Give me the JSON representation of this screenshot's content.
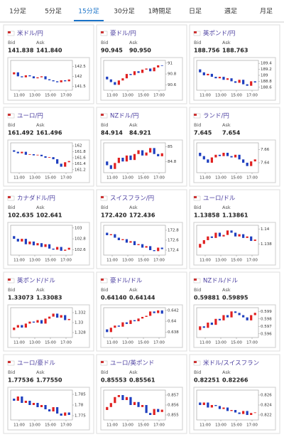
{
  "tabs": [
    "1分足",
    "5分足",
    "15分足",
    "30分足",
    "1時間足",
    "日足",
    "週足",
    "月足"
  ],
  "active_tab": 2,
  "bid_label": "Bid",
  "ask_label": "Ask",
  "xticks": [
    "11:00",
    "13:00",
    "15:00",
    "17:00"
  ],
  "panels": [
    {
      "title": "米ドル/円",
      "bid": "141.838",
      "ask": "141.840",
      "ylim": [
        141.3,
        142.8
      ],
      "yticks": [
        142.5,
        142,
        141.5
      ],
      "closes": [
        142.1,
        142.2,
        142.0,
        141.95,
        142.05,
        142.0,
        141.9,
        141.95,
        142.0,
        141.85,
        141.8,
        141.75,
        141.7,
        141.8,
        141.75,
        141.84
      ]
    },
    {
      "title": "豪ドル/円",
      "bid": "90.945",
      "ask": "90.950",
      "ylim": [
        90.5,
        91.05
      ],
      "yticks": [
        91,
        90.8,
        90.6
      ],
      "closes": [
        90.75,
        90.7,
        90.65,
        90.6,
        90.68,
        90.72,
        90.8,
        90.78,
        90.85,
        90.82,
        90.88,
        90.9,
        90.85,
        90.92,
        90.96,
        90.95
      ]
    },
    {
      "title": "英ポンド/円",
      "bid": "188.756",
      "ask": "188.763",
      "ylim": [
        188.5,
        189.5
      ],
      "yticks": [
        189.4,
        189.2,
        189,
        188.8,
        188.6
      ],
      "closes": [
        189.2,
        189.1,
        189.0,
        189.05,
        188.95,
        188.9,
        188.95,
        188.85,
        188.9,
        188.8,
        188.75,
        188.85,
        188.7,
        188.65,
        188.8,
        188.76
      ]
    },
    {
      "title": "ユーロ/円",
      "bid": "161.492",
      "ask": "161.496",
      "ylim": [
        161.1,
        162.1
      ],
      "yticks": [
        162,
        161.8,
        161.6,
        161.4,
        161.2
      ],
      "closes": [
        161.85,
        161.8,
        161.75,
        161.8,
        161.7,
        161.72,
        161.68,
        161.7,
        161.65,
        161.6,
        161.62,
        161.55,
        161.4,
        161.3,
        161.45,
        161.49
      ]
    },
    {
      "title": "NZドル/円",
      "bid": "84.914",
      "ask": "84.921",
      "ylim": [
        84.65,
        85.05
      ],
      "yticks": [
        85,
        84.8
      ],
      "closes": [
        84.8,
        84.75,
        84.7,
        84.78,
        84.85,
        84.8,
        84.88,
        84.82,
        84.9,
        84.95,
        84.88,
        84.92,
        84.98,
        84.9,
        84.87,
        84.91
      ]
    },
    {
      "title": "ランド/円",
      "bid": "7.645",
      "ask": "7.654",
      "ylim": [
        7.625,
        7.67
      ],
      "yticks": [
        7.66,
        7.64
      ],
      "closes": [
        7.655,
        7.65,
        7.645,
        7.64,
        7.648,
        7.652,
        7.65,
        7.655,
        7.65,
        7.648,
        7.652,
        7.645,
        7.64,
        7.635,
        7.642,
        7.645
      ]
    },
    {
      "title": "カナダドル/円",
      "bid": "102.635",
      "ask": "102.641",
      "ylim": [
        102.5,
        103.05
      ],
      "yticks": [
        103,
        102.8,
        102.6
      ],
      "closes": [
        102.85,
        102.8,
        102.75,
        102.8,
        102.7,
        102.75,
        102.68,
        102.72,
        102.65,
        102.7,
        102.62,
        102.6,
        102.65,
        102.58,
        102.6,
        102.635
      ]
    },
    {
      "title": "スイスフラン/円",
      "bid": "172.420",
      "ask": "172.436",
      "ylim": [
        172.3,
        172.9
      ],
      "yticks": [
        172.8,
        172.6,
        172.4
      ],
      "closes": [
        172.75,
        172.7,
        172.72,
        172.65,
        172.6,
        172.62,
        172.55,
        172.58,
        172.5,
        172.52,
        172.45,
        172.48,
        172.4,
        172.38,
        172.45,
        172.42
      ]
    },
    {
      "title": "ユーロ/ドル",
      "bid": "1.13858",
      "ask": "1.13861",
      "ylim": [
        1.1365,
        1.1405
      ],
      "yticks": [
        1.14,
        1.138
      ],
      "closes": [
        1.1375,
        1.138,
        1.1385,
        1.139,
        1.1388,
        1.1395,
        1.139,
        1.1392,
        1.1398,
        1.1395,
        1.139,
        1.1393,
        1.1388,
        1.139,
        1.1384,
        1.13858
      ]
    },
    {
      "title": "英ポンド/ドル",
      "bid": "1.33073",
      "ask": "1.33083",
      "ylim": [
        1.327,
        1.333
      ],
      "yticks": [
        1.332,
        1.33,
        1.328
      ],
      "closes": [
        1.3285,
        1.329,
        1.3295,
        1.329,
        1.3298,
        1.3302,
        1.33,
        1.3305,
        1.3298,
        1.3308,
        1.3312,
        1.3318,
        1.331,
        1.3315,
        1.3305,
        1.33073
      ]
    },
    {
      "title": "豪ドル/ドル",
      "bid": "0.64140",
      "ask": "0.64144",
      "ylim": [
        0.637,
        0.6425
      ],
      "yticks": [
        0.642,
        0.64,
        0.638
      ],
      "closes": [
        0.6385,
        0.638,
        0.6388,
        0.6392,
        0.639,
        0.6398,
        0.6395,
        0.6402,
        0.64,
        0.6405,
        0.6408,
        0.641,
        0.6418,
        0.6415,
        0.642,
        0.6414
      ]
    },
    {
      "title": "NZドル/ドル",
      "bid": "0.59881",
      "ask": "0.59895",
      "ylim": [
        0.5955,
        0.5995
      ],
      "yticks": [
        0.599,
        0.598,
        0.597,
        0.596
      ],
      "closes": [
        0.5965,
        0.597,
        0.5968,
        0.5975,
        0.5972,
        0.598,
        0.5978,
        0.5985,
        0.5982,
        0.599,
        0.5988,
        0.5985,
        0.5982,
        0.5978,
        0.5985,
        0.59881
      ]
    },
    {
      "title": "ユーロ/豪ドル",
      "bid": "1.77536",
      "ask": "1.77550",
      "ylim": [
        1.773,
        1.787
      ],
      "yticks": [
        1.785,
        1.78,
        1.775
      ],
      "closes": [
        1.783,
        1.782,
        1.784,
        1.781,
        1.782,
        1.78,
        1.781,
        1.779,
        1.78,
        1.778,
        1.777,
        1.779,
        1.776,
        1.775,
        1.7765,
        1.77536
      ]
    },
    {
      "title": "ユーロ/英ポンド",
      "bid": "0.85553",
      "ask": "0.85561",
      "ylim": [
        0.8545,
        0.8575
      ],
      "yticks": [
        0.857,
        0.856,
        0.855
      ],
      "closes": [
        0.8555,
        0.8558,
        0.8562,
        0.8568,
        0.857,
        0.8565,
        0.8568,
        0.856,
        0.8563,
        0.8558,
        0.856,
        0.8552,
        0.855,
        0.8556,
        0.8553,
        0.85553
      ]
    },
    {
      "title": "米ドル/スイスフラン",
      "bid": "0.82251",
      "ask": "0.82266",
      "ylim": [
        0.821,
        0.827
      ],
      "yticks": [
        0.826,
        0.824,
        0.822
      ],
      "closes": [
        0.8245,
        0.824,
        0.8245,
        0.8235,
        0.824,
        0.8238,
        0.8232,
        0.8235,
        0.8228,
        0.823,
        0.8225,
        0.8222,
        0.8228,
        0.822,
        0.8224,
        0.82251
      ]
    }
  ]
}
